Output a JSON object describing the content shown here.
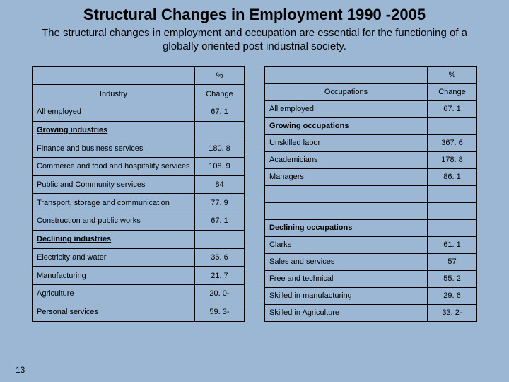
{
  "title": "Structural Changes in Employment 1990 -2005",
  "subtitle": "The structural changes in employment and occupation are essential for the functioning of a globally oriented post industrial society.",
  "page_number": "13",
  "col_headers": {
    "percent": "%",
    "industry": "Industry",
    "change": "Change",
    "occupations": "Occupations"
  },
  "left": {
    "all_label": "All employed",
    "all_val": "67. 1",
    "grow_header": "Growing industries",
    "grow": [
      {
        "label": "Finance and business services",
        "val": "180. 8"
      },
      {
        "label": "Commerce and food and hospitality services",
        "val": "108. 9"
      },
      {
        "label": "Public and Community services",
        "val": "84"
      },
      {
        "label": "Transport, storage and communication",
        "val": "77. 9"
      },
      {
        "label": "Construction and public works",
        "val": "67. 1"
      }
    ],
    "decl_header": "Declining industries",
    "decl": [
      {
        "label": "Electricity and water",
        "val": "36. 6"
      },
      {
        "label": "Manufacturing",
        "val": "21. 7"
      },
      {
        "label": "Agriculture",
        "val": "20. 0-"
      },
      {
        "label": "Personal services",
        "val": "59. 3-"
      }
    ]
  },
  "right": {
    "all_label": "All employed",
    "all_val": "67. 1",
    "grow_header": "Growing occupations",
    "grow": [
      {
        "label": "Unskilled labor",
        "val": "367. 6"
      },
      {
        "label": "Academicians",
        "val": "178. 8"
      },
      {
        "label": "Managers",
        "val": "86. 1"
      },
      {
        "label": "",
        "val": ""
      },
      {
        "label": "",
        "val": ""
      }
    ],
    "decl_header": "Declining occupations",
    "decl": [
      {
        "label": "Clarks",
        "val": "61. 1"
      },
      {
        "label": "Sales and services",
        "val": "57"
      },
      {
        "label": "Free and technical",
        "val": "55. 2"
      },
      {
        "label": "Skilled in manufacturing",
        "val": "29. 6"
      },
      {
        "label": "Skilled in Agriculture",
        "val": "33. 2-"
      }
    ]
  }
}
